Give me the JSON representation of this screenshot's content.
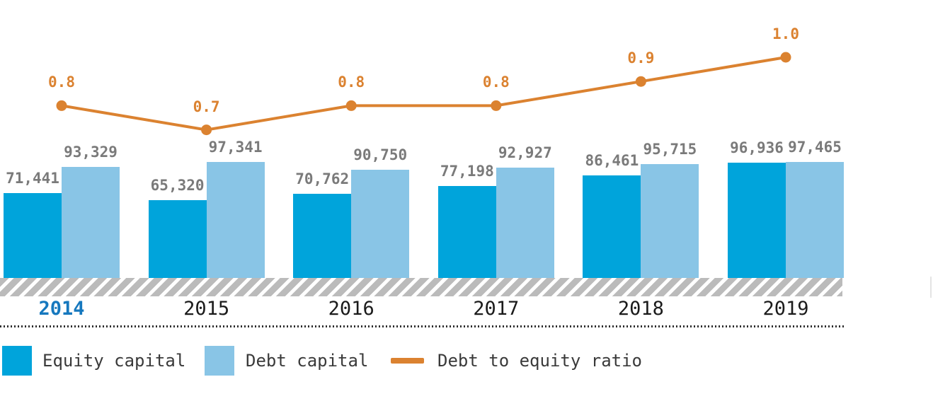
{
  "chart_data": {
    "type": "bar",
    "subtype": "grouped-bar-with-line-overlay",
    "categories": [
      "2014",
      "2015",
      "2016",
      "2017",
      "2018",
      "2019"
    ],
    "highlighted_category": "2014",
    "series": [
      {
        "name": "Equity capital",
        "type": "bar",
        "values": [
          71441,
          65320,
          70762,
          77198,
          86461,
          96936
        ],
        "labels": [
          "71,441",
          "65,320",
          "70,762",
          "77,198",
          "86,461",
          "96,936"
        ]
      },
      {
        "name": "Debt capital",
        "type": "bar",
        "values": [
          93329,
          97341,
          90750,
          92927,
          95715,
          97465
        ],
        "labels": [
          "93,329",
          "97,341",
          "90,750",
          "92,927",
          "95,715",
          "97,465"
        ]
      },
      {
        "name": "Debt to equity ratio",
        "type": "line",
        "values": [
          0.8,
          0.7,
          0.8,
          0.8,
          0.9,
          1.0
        ],
        "labels": [
          "0.8",
          "0.7",
          "0.8",
          "0.8",
          "0.9",
          "1.0"
        ]
      }
    ],
    "title": "",
    "xlabel": "",
    "ylabel": "",
    "ylim": [
      0,
      110000
    ],
    "grid": false,
    "axis_style": "hatched-band-baseline, no y-axis, value labels above bars",
    "legend_position": "bottom"
  },
  "legend": {
    "equity_label": "Equity capital",
    "debt_label": "Debt capital",
    "ratio_label": "Debt to equity ratio"
  },
  "colors": {
    "equity": "#00A4DB",
    "debt": "#89C5E6",
    "ratio": "#DB8230",
    "value_label": "#7A7A7A",
    "year": "#1B1B1B",
    "year_highlight": "#1678BE",
    "legend_text": "#3A3A3A",
    "hatch": "#BBBBBB"
  }
}
